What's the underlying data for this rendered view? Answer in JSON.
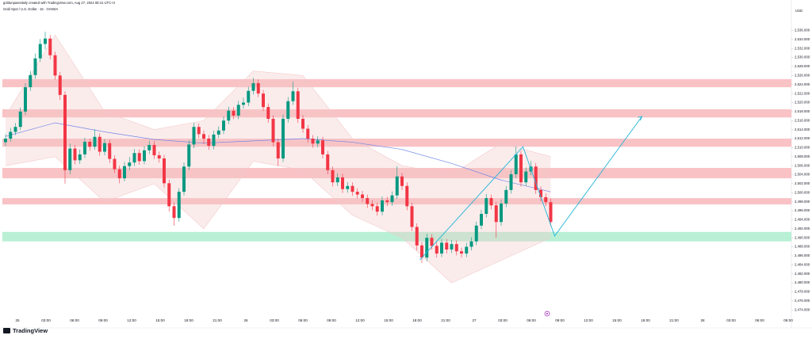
{
  "chart_data": {
    "type": "candlestick",
    "title": "Gold Spot / U.S. Dollar · 15 · OANDA",
    "subtitle": "goldunpaseslaily created with TradingView.com, Aug 27, 2024 08:41 UTC+3",
    "currency": "USD",
    "brand": "TradingView",
    "up_color": "#089981",
    "down_color": "#f23645",
    "grid": false,
    "ylim": [
      2470,
      2541
    ],
    "yticks": [
      {
        "value": 2536,
        "label": "2,536.000"
      },
      {
        "value": 2534,
        "label": "2,534.000"
      },
      {
        "value": 2532,
        "label": "2,532.000"
      },
      {
        "value": 2530,
        "label": "2,530.000"
      },
      {
        "value": 2528,
        "label": "2,528.000"
      },
      {
        "value": 2526,
        "label": "2,526.000"
      },
      {
        "value": 2524,
        "label": "2,524.000"
      },
      {
        "value": 2522,
        "label": "2,522.000"
      },
      {
        "value": 2520,
        "label": "2,520.000"
      },
      {
        "value": 2518,
        "label": "2,518.000"
      },
      {
        "value": 2516,
        "label": "2,516.000"
      },
      {
        "value": 2514,
        "label": "2,514.000"
      },
      {
        "value": 2512,
        "label": "2,512.000"
      },
      {
        "value": 2510,
        "label": "2,510.000"
      },
      {
        "value": 2508,
        "label": "2,508.000"
      },
      {
        "value": 2506,
        "label": "2,506.000"
      },
      {
        "value": 2504,
        "label": "2,504.000"
      },
      {
        "value": 2502,
        "label": "2,502.000"
      },
      {
        "value": 2500,
        "label": "2,500.000"
      },
      {
        "value": 2498,
        "label": "2,498.000"
      },
      {
        "value": 2496,
        "label": "2,496.000"
      },
      {
        "value": 2494,
        "label": "2,494.000"
      },
      {
        "value": 2492,
        "label": "2,492.000"
      },
      {
        "value": 2490,
        "label": "2,490.000"
      },
      {
        "value": 2488,
        "label": "2,488.000"
      },
      {
        "value": 2486,
        "label": "2,486.000"
      },
      {
        "value": 2484,
        "label": "2,484.000"
      },
      {
        "value": 2482,
        "label": "2,482.000"
      },
      {
        "value": 2480,
        "label": "2,480.000"
      },
      {
        "value": 2478,
        "label": "2,478.000"
      },
      {
        "value": 2476,
        "label": "2,476.000"
      },
      {
        "value": 2474,
        "label": "2,474.000"
      }
    ],
    "xticks": [
      "25",
      "03:00",
      "06:00",
      "09:00",
      "12:00",
      "15:00",
      "18:00",
      "21:00",
      "26",
      "03:00",
      "06:00",
      "09:00",
      "12:00",
      "15:00",
      "18:00",
      "21:00",
      "27",
      "03:00",
      "06:00",
      "09:00",
      "12:00",
      "15:00",
      "18:00",
      "21:00",
      "28",
      "03:00",
      "06:00",
      "09:00"
    ],
    "open": [
      2511.2,
      2512.0,
      2513.5,
      2514.6,
      2518.0,
      2523.4,
      2526.1,
      2529.8,
      2533.0,
      2534.2,
      2530.5,
      2526.0,
      2521.7,
      2505.0,
      2509.8,
      2507.2,
      2508.5,
      2511.3,
      2510.2,
      2512.4,
      2509.1,
      2511.0,
      2507.5,
      2505.2,
      2503.2,
      2505.9,
      2506.7,
      2508.8,
      2507.0,
      2509.4,
      2510.6,
      2508.3,
      2507.6,
      2502.1,
      2497.0,
      2494.4,
      2500.2,
      2505.8,
      2510.7,
      2514.6,
      2513.0,
      2512.0,
      2510.4,
      2512.9,
      2513.8,
      2516.0,
      2518.2,
      2517.1,
      2519.5,
      2520.0,
      2522.6,
      2524.3,
      2522.0,
      2519.0,
      2516.4,
      2511.2,
      2507.6,
      2516.4,
      2520.3,
      2522.5,
      2516.4,
      2514.2,
      2512.0,
      2510.9,
      2511.6,
      2508.5,
      2505.0,
      2502.3,
      2503.4,
      2500.8,
      2501.5,
      2500.2,
      2499.6,
      2498.8,
      2497.5,
      2497.0,
      2495.8,
      2498.3,
      2497.9,
      2499.4,
      2503.6,
      2501.5,
      2497.0,
      2492.4,
      2488.3,
      2485.6,
      2490.0,
      2488.2,
      2486.5,
      2488.9,
      2487.4,
      2488.6,
      2487.0,
      2486.5,
      2488.0,
      2489.2,
      2492.7,
      2495.3,
      2498.8,
      2497.2,
      2493.5,
      2497.6,
      2500.6,
      2504.1,
      2508.5,
      2502.3,
      2504.7,
      2505.8,
      2500.6,
      2499.0,
      2497.9
    ],
    "high": [
      2513.0,
      2514.4,
      2515.5,
      2518.9,
      2524.3,
      2527.0,
      2530.9,
      2534.1,
      2535.7,
      2535.0,
      2531.3,
      2526.8,
      2522.5,
      2510.9,
      2510.6,
      2509.6,
      2512.2,
      2512.0,
      2514.1,
      2513.2,
      2511.9,
      2511.8,
      2508.3,
      2506.0,
      2506.8,
      2507.9,
      2509.7,
      2509.6,
      2510.3,
      2511.5,
      2511.4,
      2509.1,
      2508.4,
      2502.9,
      2497.8,
      2501.0,
      2506.7,
      2511.6,
      2515.5,
      2515.4,
      2513.8,
      2512.8,
      2513.8,
      2514.7,
      2516.9,
      2519.1,
      2519.0,
      2520.4,
      2521.1,
      2523.5,
      2525.5,
      2525.1,
      2522.8,
      2519.8,
      2517.2,
      2512.0,
      2517.3,
      2521.2,
      2524.6,
      2523.3,
      2517.2,
      2515.0,
      2512.8,
      2512.5,
      2512.4,
      2509.3,
      2505.8,
      2504.3,
      2504.2,
      2502.4,
      2502.3,
      2501.0,
      2500.4,
      2499.6,
      2498.3,
      2497.8,
      2499.2,
      2499.1,
      2500.3,
      2505.9,
      2504.4,
      2502.3,
      2497.8,
      2493.2,
      2489.1,
      2490.9,
      2490.8,
      2489.0,
      2489.8,
      2489.7,
      2489.5,
      2489.4,
      2487.8,
      2488.9,
      2490.1,
      2493.6,
      2496.2,
      2499.7,
      2499.6,
      2498.0,
      2498.5,
      2501.5,
      2505.0,
      2510.2,
      2509.3,
      2505.6,
      2507.0,
      2506.6,
      2501.4,
      2499.8,
      2498.7
    ],
    "low": [
      2510.4,
      2511.3,
      2512.8,
      2513.9,
      2517.2,
      2522.6,
      2525.3,
      2529.0,
      2531.8,
      2529.6,
      2525.1,
      2520.6,
      2502.0,
      2504.1,
      2506.3,
      2506.4,
      2507.7,
      2509.3,
      2509.5,
      2508.2,
      2508.3,
      2506.6,
      2504.4,
      2502.1,
      2502.5,
      2505.0,
      2505.9,
      2506.2,
      2506.3,
      2508.6,
      2507.5,
      2506.7,
      2501.2,
      2495.8,
      2492.7,
      2493.6,
      2499.4,
      2505.0,
      2509.9,
      2512.1,
      2510.8,
      2509.5,
      2509.6,
      2512.1,
      2513.0,
      2515.2,
      2516.3,
      2516.3,
      2518.7,
      2519.2,
      2521.8,
      2521.2,
      2518.1,
      2515.5,
      2510.3,
      2505.9,
      2506.8,
      2515.6,
      2519.5,
      2515.5,
      2513.3,
      2511.1,
      2510.0,
      2510.1,
      2507.6,
      2504.1,
      2501.4,
      2501.5,
      2499.9,
      2500.0,
      2499.3,
      2498.7,
      2497.9,
      2496.6,
      2496.1,
      2494.9,
      2495.0,
      2497.0,
      2497.1,
      2498.6,
      2500.6,
      2496.1,
      2491.5,
      2487.2,
      2484.4,
      2484.8,
      2487.3,
      2485.6,
      2485.7,
      2486.5,
      2486.6,
      2486.1,
      2485.6,
      2485.7,
      2487.2,
      2488.4,
      2491.9,
      2494.5,
      2496.3,
      2490.0,
      2492.7,
      2496.8,
      2499.8,
      2503.3,
      2501.4,
      2501.5,
      2503.9,
      2499.7,
      2498.1,
      2497.0,
      2492.6
    ],
    "close": [
      2512.0,
      2513.5,
      2514.6,
      2518.0,
      2523.4,
      2526.1,
      2529.8,
      2533.0,
      2534.2,
      2530.5,
      2526.0,
      2521.7,
      2505.0,
      2509.8,
      2507.2,
      2508.5,
      2511.3,
      2510.2,
      2512.4,
      2509.1,
      2511.0,
      2507.5,
      2505.2,
      2503.2,
      2505.9,
      2506.7,
      2508.8,
      2507.0,
      2509.4,
      2510.6,
      2508.3,
      2507.6,
      2502.1,
      2497.0,
      2494.4,
      2500.2,
      2505.8,
      2510.7,
      2514.6,
      2513.0,
      2512.0,
      2510.4,
      2512.9,
      2513.8,
      2516.0,
      2518.2,
      2517.1,
      2519.5,
      2520.0,
      2522.6,
      2524.3,
      2522.0,
      2519.0,
      2516.4,
      2511.2,
      2507.6,
      2516.4,
      2520.3,
      2522.5,
      2516.4,
      2514.2,
      2512.0,
      2510.9,
      2511.6,
      2508.5,
      2505.0,
      2502.3,
      2503.4,
      2500.8,
      2501.5,
      2500.2,
      2499.6,
      2498.8,
      2497.5,
      2497.0,
      2495.8,
      2498.3,
      2497.9,
      2499.4,
      2503.6,
      2501.5,
      2497.0,
      2492.4,
      2488.3,
      2485.6,
      2490.0,
      2488.2,
      2486.5,
      2488.9,
      2487.4,
      2488.6,
      2487.0,
      2486.5,
      2488.0,
      2489.2,
      2492.7,
      2495.3,
      2498.8,
      2497.2,
      2493.5,
      2497.6,
      2500.6,
      2504.1,
      2508.5,
      2502.3,
      2504.7,
      2505.8,
      2500.6,
      2499.0,
      2497.9,
      2493.5
    ],
    "zones": [
      {
        "color": "#f7b3b7",
        "range": [
          2525.2,
          2523.4
        ]
      },
      {
        "color": "#f7b3b7",
        "range": [
          2518.5,
          2516.7
        ]
      },
      {
        "color": "#f7b3b7",
        "range": [
          2512.0,
          2510.2
        ]
      },
      {
        "color": "#f7b3b7",
        "range": [
          2505.5,
          2503.2
        ]
      },
      {
        "color": "#f7b3b7",
        "range": [
          2498.8,
          2497.4
        ]
      },
      {
        "color": "#a6ecca",
        "range": [
          2491.3,
          2489.2
        ]
      }
    ],
    "band": {
      "color": "#f3c9c9",
      "x": [
        0,
        10,
        20,
        30,
        40,
        50,
        60,
        70,
        80,
        90,
        100,
        110
      ],
      "upper": [
        2517,
        2535,
        2518,
        2514,
        2516,
        2527,
        2526,
        2512,
        2506,
        2504,
        2511,
        2508
      ],
      "lower": [
        2506,
        2508,
        2498,
        2502,
        2492,
        2507,
        2505,
        2495,
        2490,
        2480,
        2485,
        2490
      ]
    },
    "lines": [
      {
        "color": "#6f86e8",
        "x": [
          0,
          10,
          20,
          30,
          40,
          50,
          60,
          70,
          80,
          90,
          100,
          110
        ],
        "values": [
          2512.5,
          2515.5,
          2513.5,
          2511.8,
          2511.0,
          2511.5,
          2512.0,
          2511.2,
          2509.6,
          2506.5,
          2502.8,
          2500.2
        ]
      }
    ],
    "projection": {
      "color": "#22b5d6",
      "x": [
        83.6,
        104.4,
        110.8,
        128.4
      ],
      "values": [
        2485.1,
        2510.2,
        2490.4,
        2516.9
      ]
    }
  }
}
